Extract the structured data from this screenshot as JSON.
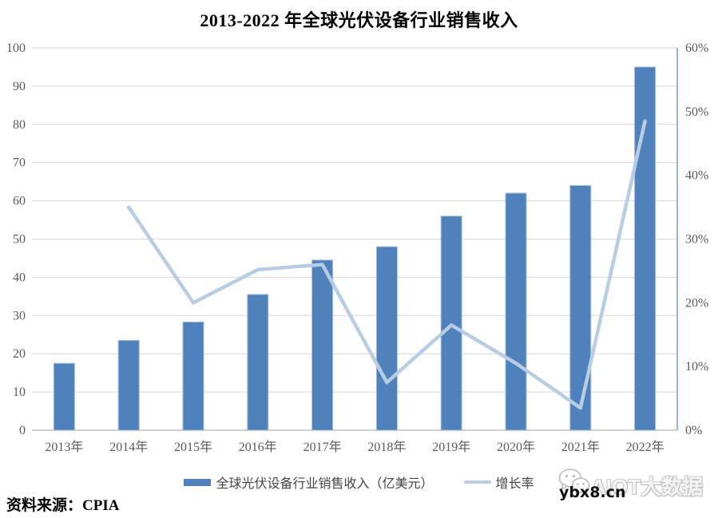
{
  "title": "2013-2022 年全球光伏设备行业销售收入",
  "chart_data": {
    "type": "bar",
    "subtype": "bar-and-line-dual-axis",
    "title": "2013-2022 年全球光伏设备行业销售收入",
    "categories": [
      "2013年",
      "2014年",
      "2015年",
      "2016年",
      "2017年",
      "2018年",
      "2019年",
      "2020年",
      "2021年",
      "2022年"
    ],
    "series": [
      {
        "name": "全球光伏设备行业销售收入（亿美元）",
        "type": "bar",
        "axis": "left",
        "color": "#4F81BD",
        "values": [
          17.5,
          23.5,
          28.3,
          35.5,
          44.5,
          48,
          56,
          62,
          64,
          95
        ]
      },
      {
        "name": "增长率",
        "type": "line",
        "axis": "right",
        "color": "#B8CCE4",
        "values": [
          null,
          35,
          20,
          25.2,
          26,
          7.5,
          16.5,
          10.5,
          3.5,
          48.5
        ]
      }
    ],
    "left_axis": {
      "min": 0,
      "max": 100,
      "step": 10,
      "tick_labels": [
        "0",
        "10",
        "20",
        "30",
        "40",
        "50",
        "60",
        "70",
        "80",
        "90",
        "100"
      ]
    },
    "right_axis": {
      "min": 0,
      "max": 60,
      "step": 10,
      "tick_labels": [
        "0%",
        "10%",
        "20%",
        "30%",
        "40%",
        "50%",
        "60%"
      ]
    },
    "grid": true,
    "legend_position": "bottom"
  },
  "legend": {
    "items": [
      {
        "label": "全球光伏设备行业销售收入（亿美元）",
        "swatch": "bar",
        "color": "#4F81BD"
      },
      {
        "label": "增长率",
        "swatch": "line",
        "color": "#B8CCE4"
      }
    ]
  },
  "footer": {
    "source": "资料来源：CPIA"
  },
  "watermark": {
    "brand": "AIOT大数据",
    "site": "ybx8.cn",
    "icon": "wechat-icon"
  },
  "colors": {
    "bar": "#4F81BD",
    "bar_border": "#A3BCDD",
    "line": "#B8CCE4",
    "right_axis_line": "#95B3D7",
    "gridline": "#D9D9D9",
    "baseline": "#BFBFBF",
    "axis_text": "#595959",
    "background": "#FFFFFF"
  }
}
